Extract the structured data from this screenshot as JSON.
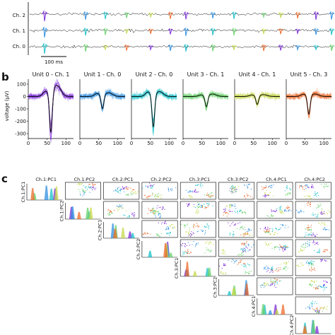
{
  "panels": {
    "a": {
      "letter": "",
      "channels": [
        "Ch. 2",
        "Ch. 1",
        "Ch. 0"
      ],
      "scalebar_label": "100 ms",
      "unit_colors": [
        "#7b2cd6",
        "#2f8fe0",
        "#18c0c8",
        "#66d16a",
        "#c7d84a",
        "#ec6a2a"
      ]
    },
    "b": {
      "letter": "b",
      "ylabel": "voltage (μV)",
      "yticks": [
        100,
        0,
        -100,
        -200,
        -300
      ],
      "xticks": [
        0,
        50,
        100
      ],
      "ylim": [
        -340,
        140
      ],
      "xlim": [
        0,
        120
      ]
    },
    "c": {
      "letter": "c",
      "pc_labels": [
        "Ch.1:PC1",
        "Ch.1:PC2",
        "Ch.2:PC1",
        "Ch.2:PC2",
        "Ch.3:PC1",
        "Ch.3:PC2",
        "Ch.4:PC1",
        "Ch.4:PC2"
      ],
      "row_labels": [
        "Ch.1:PC1",
        "Ch.1:PC2",
        "Ch.2:PC1",
        "Ch.2:PC2",
        "Ch.3:PC1",
        "Ch.3:PC2",
        "Ch.4:PC1",
        "Ch.4:PC2"
      ]
    }
  },
  "chart_data": [
    {
      "type": "line",
      "panel": "a",
      "series": [
        {
          "name": "Ch. 2",
          "values": []
        },
        {
          "name": "Ch. 1",
          "values": []
        },
        {
          "name": "Ch. 0",
          "values": []
        }
      ]
    },
    {
      "type": "line",
      "panel": "b",
      "ylabel": "voltage (μV)",
      "xlim": [
        0,
        120
      ],
      "ylim": [
        -340,
        140
      ],
      "units": [
        {
          "title": "Unit 0 - Ch. 1",
          "color": "#7b2cd6",
          "trough_x": 60,
          "trough_y": -320,
          "peak_y": 70,
          "recovery_y": 90
        },
        {
          "title": "Unit 1 - Ch. 0",
          "color": "#2f8fe0",
          "trough_x": 60,
          "trough_y": -110,
          "peak_y": 40,
          "recovery_y": 30
        },
        {
          "title": "Unit 2 - Ch. 0",
          "color": "#18c0c8",
          "trough_x": 58,
          "trough_y": -260,
          "peak_y": 60,
          "recovery_y": 40
        },
        {
          "title": "Unit 3 - Ch. 1",
          "color": "#66d16a",
          "trough_x": 62,
          "trough_y": -90,
          "peak_y": 20,
          "recovery_y": 20
        },
        {
          "title": "Unit 4 - Ch. 1",
          "color": "#c7d84a",
          "trough_x": 60,
          "trough_y": -70,
          "peak_y": 20,
          "recovery_y": 15
        },
        {
          "title": "Unit 5 - Ch. 3",
          "color": "#ec6a2a",
          "trough_x": 60,
          "trough_y": -150,
          "peak_y": 30,
          "recovery_y": 20
        }
      ]
    },
    {
      "type": "scatter",
      "panel": "c",
      "pairs": "upper-triangle PC scatter matrix with histograms on the diagonal",
      "n_dims": 8
    }
  ]
}
